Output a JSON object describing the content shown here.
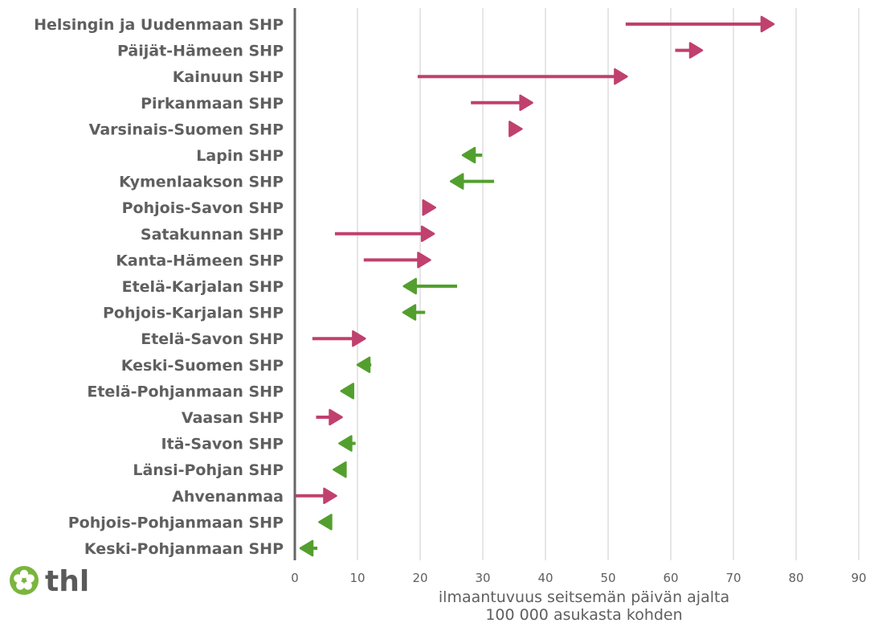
{
  "logo": {
    "text": "thl",
    "icon": "flower-icon",
    "icon_color": "#7ab53d"
  },
  "colors": {
    "increase": "#c0406e",
    "decrease": "#539f2e",
    "axis": "#666666",
    "grid": "#dddddd",
    "text": "#5f5f5f"
  },
  "chart_data": {
    "type": "arrow-range",
    "categories": [
      "Helsingin ja Uudenmaan SHP",
      "Päijät-Hämeen SHP",
      "Kainuun SHP",
      "Pirkanmaan SHP",
      "Varsinais-Suomen SHP",
      "Lapin SHP",
      "Kymenlaakson SHP",
      "Pohjois-Savon SHP",
      "Satakunnan SHP",
      "Kanta-Hämeen SHP",
      "Etelä-Karjalan SHP",
      "Pohjois-Karjalan SHP",
      "Etelä-Savon SHP",
      "Keski-Suomen SHP",
      "Etelä-Pohjanmaan SHP",
      "Vaasan SHP",
      "Itä-Savon SHP",
      "Länsi-Pohjan SHP",
      "Ahvenanmaa",
      "Pohjois-Pohjanmaan SHP",
      "Keski-Pohjanmaan SHP"
    ],
    "start": [
      52.8,
      60.7,
      19.6,
      28.1,
      34.9,
      29.9,
      31.8,
      20.9,
      6.4,
      11.0,
      25.9,
      20.8,
      2.8,
      12.2,
      9.4,
      3.4,
      9.7,
      8.2,
      0.0,
      5.6,
      3.6
    ],
    "end": [
      76.4,
      65.0,
      53.0,
      37.9,
      36.2,
      26.8,
      24.9,
      22.4,
      22.2,
      21.6,
      17.4,
      17.3,
      11.2,
      10.0,
      7.4,
      7.5,
      7.1,
      6.2,
      6.6,
      3.9,
      0.9
    ],
    "xlim": [
      0,
      90
    ],
    "xticks": [
      0,
      10,
      20,
      30,
      40,
      50,
      60,
      70,
      80,
      90
    ],
    "xticklabels": [
      "0",
      "10",
      "20",
      "30",
      "40",
      "50",
      "60",
      "70",
      "80",
      "90"
    ],
    "xlabel_line1": "ilmaantuvuus seitsemän päivän ajalta",
    "xlabel_line2": "100 000 asukasta kohden",
    "grid": true
  }
}
